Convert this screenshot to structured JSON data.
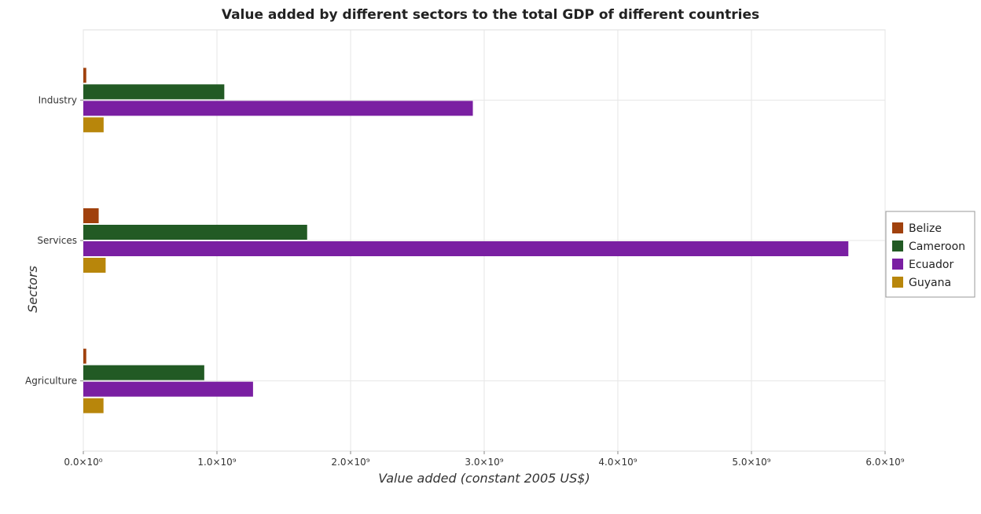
{
  "chart_data": {
    "type": "bar",
    "orientation": "horizontal",
    "title": "Value added by different sectors to the total GDP of different countries",
    "xlabel": "Value added (constant 2005 US$)",
    "ylabel": "Sectors",
    "xlim": [
      0,
      6000000000
    ],
    "x_ticks": [
      0,
      1000000000,
      2000000000,
      3000000000,
      4000000000,
      5000000000,
      6000000000
    ],
    "x_tick_labels": [
      "0.0×10⁰",
      "1.0×10⁹",
      "2.0×10⁹",
      "3.0×10⁹",
      "4.0×10⁹",
      "5.0×10⁹",
      "6.0×10⁹"
    ],
    "categories": [
      "Industry",
      "Services",
      "Agriculture"
    ],
    "grid": true,
    "legend_position": "right",
    "series": [
      {
        "name": "Belize",
        "color": "#a0410d",
        "values": [
          22000000,
          115000000,
          22000000
        ]
      },
      {
        "name": "Cameroon",
        "color": "#225a24",
        "values": [
          1055000000,
          1675000000,
          905000000
        ]
      },
      {
        "name": "Ecuador",
        "color": "#7a1fa2",
        "values": [
          2915000000,
          5725000000,
          1270000000
        ]
      },
      {
        "name": "Guyana",
        "color": "#b8860b",
        "values": [
          152000000,
          167000000,
          151000000
        ]
      }
    ]
  }
}
